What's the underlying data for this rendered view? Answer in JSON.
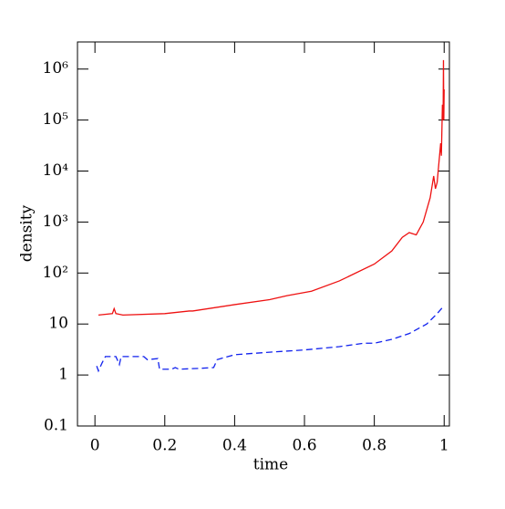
{
  "chart_data": {
    "type": "line",
    "x_label": "time",
    "y_label": "density",
    "xlim": [
      -0.05,
      1.015
    ],
    "xticks": [
      0,
      0.2,
      0.4,
      0.6,
      0.8,
      1
    ],
    "ylim": [
      0.1,
      3400000
    ],
    "ylog": true,
    "yticks": [
      0.1,
      1,
      10,
      {
        "value": 100,
        "label": "10²"
      },
      {
        "value": 1000,
        "label": "10³"
      },
      {
        "value": 10000,
        "label": "10⁴"
      },
      {
        "value": 100000,
        "label": "10⁵"
      },
      {
        "value": 1000000,
        "label": "10⁶"
      }
    ],
    "series": [
      {
        "color": "#ee1111",
        "dash": false,
        "x": [
          0.01,
          0.05,
          0.055,
          0.06,
          0.08,
          0.2,
          0.27,
          0.28,
          0.4,
          0.5,
          0.55,
          0.62,
          0.7,
          0.8,
          0.85,
          0.88,
          0.9,
          0.92,
          0.94,
          0.96,
          0.97,
          0.975,
          0.98,
          0.99,
          0.992,
          0.995,
          0.997,
          0.998,
          0.999,
          1.0
        ],
        "values": [
          15,
          16,
          20,
          16,
          15,
          16,
          18,
          18,
          24,
          30,
          36,
          44,
          70,
          150,
          270,
          500,
          620,
          560,
          1000,
          3000,
          8000,
          4500,
          6000,
          35000,
          20000,
          200000,
          100000,
          1500000,
          100000,
          400000
        ]
      },
      {
        "color": "#1122ee",
        "dash": true,
        "x": [
          0.005,
          0.01,
          0.02,
          0.03,
          0.06,
          0.07,
          0.075,
          0.14,
          0.15,
          0.18,
          0.185,
          0.22,
          0.23,
          0.24,
          0.3,
          0.34,
          0.35,
          0.36,
          0.4,
          0.5,
          0.6,
          0.7,
          0.77,
          0.8,
          0.85,
          0.9,
          0.95,
          0.98,
          1.0
        ],
        "values": [
          1.5,
          1.2,
          1.7,
          2.3,
          2.3,
          1.6,
          2.3,
          2.3,
          2.0,
          2.1,
          1.3,
          1.3,
          1.4,
          1.3,
          1.35,
          1.4,
          2.0,
          2.1,
          2.5,
          2.8,
          3.1,
          3.6,
          4.2,
          4.2,
          5.0,
          6.5,
          10,
          16,
          23
        ]
      }
    ]
  }
}
